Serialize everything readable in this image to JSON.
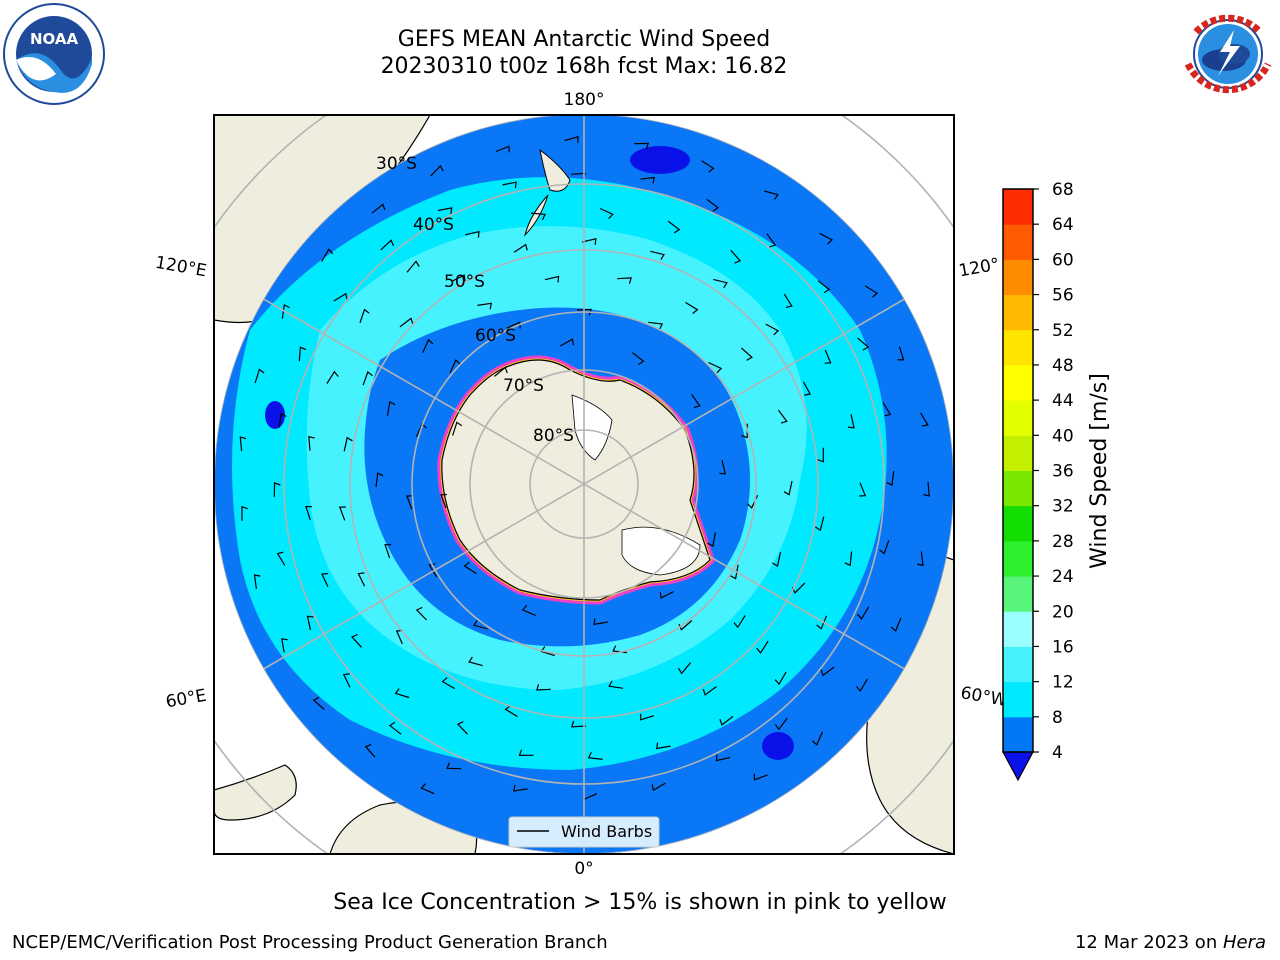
{
  "title": {
    "line1": "GEFS MEAN Antarctic Wind Speed",
    "line2": "20230310 t00z 168h fcst   Max: 16.82"
  },
  "logos": {
    "noaa": {
      "text": "NOAA",
      "ring_text": "NATIONAL OCEANIC AND ATMOSPHERIC ADMINISTRATION · U.S. DEPARTMENT OF COMMERCE",
      "color": "#1f4a9a"
    },
    "nws": {
      "ring_text": "NATIONAL WEATHER SERVICE",
      "color": "#d7261e"
    }
  },
  "map": {
    "projection": "south-polar-stereographic",
    "longitude_labels": {
      "top": "180°",
      "bottom": "0°",
      "upper_left": "120°E",
      "upper_right": "120°",
      "lower_left": "60°E",
      "lower_right": "60°W"
    },
    "latitude_labels": [
      "30°S",
      "40°S",
      "50°S",
      "60°S",
      "70°S",
      "80°S"
    ],
    "legend": {
      "label": "Wind Barbs"
    },
    "colors": {
      "land": "#efedde",
      "ocean_base": "#0a77f7",
      "ice_edge": "#f040c8",
      "ice_inner": "#ffd200",
      "grid": "#b3b3b3"
    }
  },
  "colorbar": {
    "label": "Wind Speed [m/s]",
    "ticks": [
      "4",
      "8",
      "12",
      "16",
      "20",
      "24",
      "28",
      "32",
      "36",
      "40",
      "44",
      "48",
      "52",
      "56",
      "60",
      "64",
      "68"
    ],
    "colors": [
      "#0078f5",
      "#00e9ff",
      "#47f2ff",
      "#9bffff",
      "#59f57a",
      "#2ef02e",
      "#11dd00",
      "#78e800",
      "#c3ef00",
      "#e4ff00",
      "#ffff00",
      "#ffe400",
      "#ffb900",
      "#ff8c00",
      "#ff5a00",
      "#ff2d00"
    ],
    "extend_color": "#0a12e9"
  },
  "note": "Sea Ice Concentration > 15% is shown in pink to yellow",
  "footer": {
    "left": "NCEP/EMC/Verification Post Processing Product Generation Branch",
    "right_prefix": "12 Mar 2023 on ",
    "right_machine": "Hera"
  }
}
